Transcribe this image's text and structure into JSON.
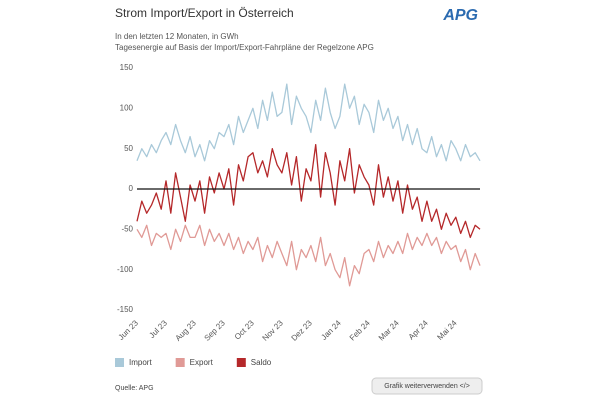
{
  "chart_data": {
    "type": "line",
    "title": "Strom Import/Export in Österreich",
    "subtitle": [
      "In den letzten 12 Monaten, in GWh",
      "Tagesenergie auf Basis der Import/Export-Fahrpläne der Regelzone APG"
    ],
    "categories": [
      "Jun 23",
      null,
      null,
      null,
      null,
      null,
      "Jul 23",
      null,
      null,
      null,
      null,
      null,
      "Aug 23",
      null,
      null,
      null,
      null,
      null,
      "Sep 23",
      null,
      null,
      null,
      null,
      null,
      "Oct 23",
      null,
      null,
      null,
      null,
      null,
      "Nov 23",
      null,
      null,
      null,
      null,
      null,
      "Dez 23",
      null,
      null,
      null,
      null,
      null,
      "Jan 24",
      null,
      null,
      null,
      null,
      null,
      "Feb 24",
      null,
      null,
      null,
      null,
      null,
      "Mar 24",
      null,
      null,
      null,
      null,
      null,
      "Apr 24",
      null,
      null,
      null,
      null,
      null,
      "Mai 24",
      null,
      null,
      null,
      null,
      null
    ],
    "series": [
      {
        "name": "Import",
        "color": "#a9c9d9",
        "values": [
          35,
          50,
          40,
          55,
          45,
          60,
          70,
          55,
          80,
          60,
          45,
          65,
          40,
          55,
          35,
          60,
          50,
          70,
          65,
          80,
          55,
          90,
          70,
          85,
          100,
          75,
          110,
          85,
          120,
          90,
          95,
          130,
          80,
          115,
          100,
          90,
          70,
          110,
          85,
          125,
          95,
          75,
          90,
          130,
          100,
          115,
          80,
          105,
          95,
          70,
          110,
          85,
          100,
          75,
          90,
          60,
          80,
          55,
          75,
          50,
          45,
          65,
          40,
          55,
          35,
          60,
          50,
          35,
          55,
          40,
          45,
          35
        ]
      },
      {
        "name": "Export",
        "color": "#e09a96",
        "values": [
          -50,
          -60,
          -45,
          -70,
          -55,
          -60,
          -55,
          -75,
          -50,
          -65,
          -45,
          -60,
          -60,
          -45,
          -70,
          -50,
          -65,
          -55,
          -70,
          -55,
          -75,
          -60,
          -80,
          -65,
          -75,
          -60,
          -90,
          -70,
          -85,
          -65,
          -80,
          -95,
          -65,
          -100,
          -75,
          -85,
          -70,
          -90,
          -60,
          -95,
          -80,
          -100,
          -110,
          -85,
          -120,
          -95,
          -105,
          -80,
          -75,
          -90,
          -65,
          -85,
          -70,
          -80,
          -65,
          -80,
          -55,
          -75,
          -60,
          -70,
          -55,
          -70,
          -60,
          -80,
          -65,
          -75,
          -70,
          -90,
          -75,
          -100,
          -80,
          -95
        ]
      },
      {
        "name": "Saldo",
        "color": "#b5282a",
        "values": [
          -40,
          -15,
          -30,
          -20,
          -5,
          -25,
          10,
          -30,
          20,
          -10,
          -40,
          5,
          -15,
          10,
          -30,
          15,
          -5,
          20,
          0,
          25,
          -20,
          30,
          10,
          40,
          45,
          20,
          35,
          15,
          50,
          30,
          20,
          45,
          5,
          40,
          -15,
          25,
          10,
          55,
          -10,
          45,
          20,
          -20,
          35,
          10,
          50,
          -5,
          30,
          15,
          5,
          -20,
          30,
          -10,
          15,
          -15,
          10,
          -30,
          5,
          -25,
          -10,
          -40,
          -15,
          -40,
          -25,
          -50,
          -30,
          -45,
          -35,
          -55,
          -40,
          -60,
          -45,
          -50
        ]
      }
    ],
    "ylim": [
      -150,
      150
    ],
    "yticks": [
      150,
      100,
      50,
      0,
      -50,
      -100,
      -150
    ],
    "zero_line": true,
    "grid": false
  },
  "logo": "APG",
  "source": "Quelle: APG",
  "button": "Grafik weiterverwenden </>"
}
